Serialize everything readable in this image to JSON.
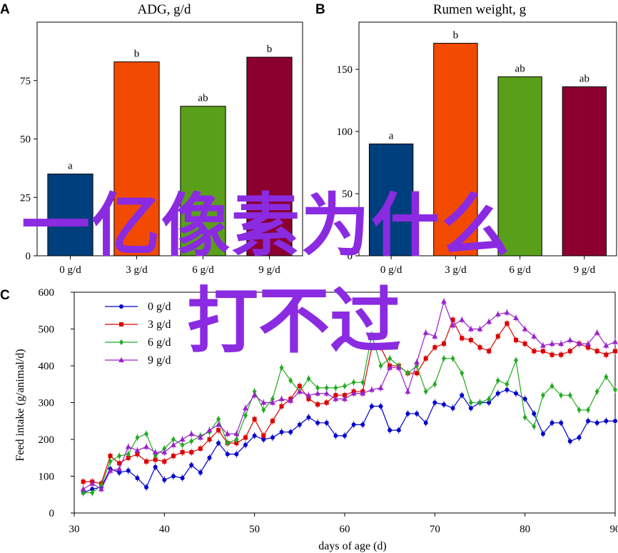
{
  "chart_data": [
    {
      "panel_label": "A",
      "type": "bar",
      "title": "ADG, g/d",
      "categories": [
        "0 g/d",
        "3 g/d",
        "6 g/d",
        "9 g/d"
      ],
      "values": [
        35,
        83,
        64,
        85
      ],
      "letters": [
        "a",
        "b",
        "ab",
        "b"
      ],
      "colors": [
        "#003f7d",
        "#f24a00",
        "#5a9f1a",
        "#8c0030"
      ],
      "yticks": [
        0,
        25,
        50,
        75
      ],
      "ylim": [
        0,
        100
      ]
    },
    {
      "panel_label": "B",
      "type": "bar",
      "title": "Rumen weight, g",
      "categories": [
        "0 g/d",
        "3 g/d",
        "6 g/d",
        "9 g/d"
      ],
      "values": [
        90,
        171,
        144,
        136
      ],
      "letters": [
        "a",
        "b",
        "ab",
        "ab"
      ],
      "colors": [
        "#003f7d",
        "#f24a00",
        "#5a9f1a",
        "#8c0030"
      ],
      "yticks": [
        0,
        50,
        100,
        150
      ],
      "ylim": [
        0,
        188
      ]
    },
    {
      "panel_label": "C",
      "type": "line",
      "xlabel": "days of age (d)",
      "ylabel": "Feed intake (g/animal/d)",
      "xlim": [
        30,
        90
      ],
      "ylim": [
        0,
        600
      ],
      "xticks": [
        30,
        40,
        50,
        60,
        70,
        80,
        90
      ],
      "yticks": [
        0,
        100,
        200,
        300,
        400,
        500,
        600
      ],
      "legend_position": "top-left",
      "x": [
        31,
        32,
        33,
        34,
        35,
        36,
        37,
        38,
        39,
        40,
        41,
        42,
        43,
        44,
        45,
        46,
        47,
        48,
        49,
        50,
        51,
        52,
        53,
        54,
        55,
        56,
        57,
        58,
        59,
        60,
        61,
        62,
        63,
        64,
        65,
        66,
        67,
        68,
        69,
        70,
        71,
        72,
        73,
        74,
        75,
        76,
        77,
        78,
        79,
        80,
        81,
        82,
        83,
        84,
        85,
        86,
        87,
        88,
        89,
        90
      ],
      "series": [
        {
          "name": "0 g/d",
          "color": "#0000cc",
          "marker": "circle",
          "values": [
            55,
            65,
            70,
            120,
            110,
            115,
            95,
            70,
            125,
            90,
            100,
            95,
            130,
            110,
            150,
            190,
            160,
            160,
            185,
            210,
            200,
            205,
            220,
            220,
            240,
            260,
            245,
            245,
            210,
            210,
            240,
            240,
            290,
            290,
            225,
            225,
            270,
            270,
            245,
            300,
            295,
            285,
            320,
            285,
            300,
            300,
            325,
            335,
            325,
            310,
            270,
            215,
            245,
            245,
            195,
            205,
            250,
            245,
            250,
            250
          ]
        },
        {
          "name": "3 g/d",
          "color": "#dd0000",
          "marker": "square",
          "values": [
            85,
            85,
            80,
            155,
            135,
            150,
            160,
            140,
            145,
            140,
            155,
            165,
            165,
            175,
            200,
            225,
            190,
            190,
            205,
            255,
            210,
            250,
            290,
            310,
            345,
            310,
            295,
            300,
            320,
            320,
            330,
            330,
            450,
            450,
            400,
            400,
            380,
            380,
            420,
            450,
            460,
            525,
            475,
            470,
            450,
            440,
            480,
            515,
            470,
            460,
            440,
            440,
            430,
            430,
            440,
            460,
            450,
            440,
            430,
            440
          ]
        },
        {
          "name": "6 g/d",
          "color": "#22aa22",
          "marker": "diamond",
          "values": [
            55,
            55,
            75,
            140,
            155,
            160,
            205,
            215,
            155,
            175,
            200,
            185,
            195,
            210,
            220,
            255,
            190,
            200,
            265,
            330,
            280,
            310,
            395,
            360,
            330,
            365,
            340,
            340,
            340,
            345,
            355,
            355,
            485,
            400,
            420,
            400,
            380,
            400,
            330,
            350,
            420,
            420,
            380,
            300,
            300,
            310,
            360,
            350,
            415,
            260,
            235,
            320,
            345,
            320,
            320,
            280,
            280,
            330,
            370,
            335
          ]
        },
        {
          "name": "9 g/d",
          "color": "#9922cc",
          "marker": "triangle",
          "values": [
            65,
            80,
            65,
            115,
            120,
            180,
            170,
            180,
            165,
            165,
            185,
            200,
            215,
            205,
            225,
            240,
            215,
            215,
            285,
            320,
            300,
            300,
            310,
            305,
            330,
            320,
            325,
            325,
            310,
            310,
            325,
            325,
            335,
            340,
            395,
            395,
            330,
            410,
            490,
            480,
            575,
            510,
            525,
            500,
            500,
            520,
            540,
            545,
            530,
            500,
            480,
            455,
            460,
            460,
            470,
            460,
            460,
            490,
            455,
            465
          ]
        }
      ]
    }
  ]
}
